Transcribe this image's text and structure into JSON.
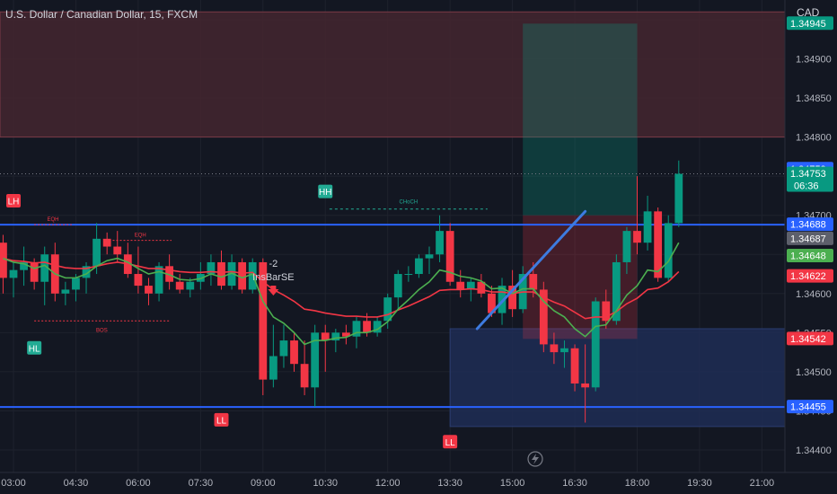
{
  "header": {
    "title": "U.S. Dollar / Canadian Dollar, 15, FXCM",
    "currency": "CAD"
  },
  "chart_data": {
    "type": "candlestick",
    "ylim": [
      1.3438,
      1.3502
    ],
    "y_ticks": [
      "1.34400",
      "1.34450",
      "1.34500",
      "1.34550",
      "1.34600",
      "1.34650",
      "1.34700",
      "1.34750",
      "1.34800",
      "1.34850",
      "1.34900",
      "1.34950"
    ],
    "x_ticks": [
      "03:00",
      "04:30",
      "06:00",
      "07:30",
      "09:00",
      "10:30",
      "12:00",
      "13:30",
      "15:00",
      "16:30",
      "18:00",
      "19:30",
      "21:00"
    ],
    "x_tick_hours": [
      3,
      4.5,
      6,
      7.5,
      9,
      10.5,
      12,
      13.5,
      15,
      16.5,
      18,
      19.5,
      21
    ],
    "bar_minutes": 15,
    "first_bar_hour": 2.75,
    "candles": [
      [
        1.34665,
        1.34675,
        1.346,
        1.3462
      ],
      [
        1.3462,
        1.3464,
        1.34595,
        1.3463
      ],
      [
        1.3463,
        1.3466,
        1.3461,
        1.3464
      ],
      [
        1.3464,
        1.34645,
        1.34605,
        1.34615
      ],
      [
        1.34615,
        1.3466,
        1.34585,
        1.3465
      ],
      [
        1.3465,
        1.34665,
        1.3459,
        1.346
      ],
      [
        1.346,
        1.34615,
        1.34585,
        1.34605
      ],
      [
        1.34605,
        1.34625,
        1.3459,
        1.3462
      ],
      [
        1.3462,
        1.3464,
        1.346,
        1.34635
      ],
      [
        1.34635,
        1.3469,
        1.34625,
        1.3467
      ],
      [
        1.3467,
        1.34678,
        1.3465,
        1.3466
      ],
      [
        1.3466,
        1.3468,
        1.3464,
        1.3465
      ],
      [
        1.3465,
        1.34665,
        1.3462,
        1.34625
      ],
      [
        1.34625,
        1.3466,
        1.346,
        1.3461
      ],
      [
        1.3461,
        1.3462,
        1.34585,
        1.346
      ],
      [
        1.346,
        1.3464,
        1.3459,
        1.34635
      ],
      [
        1.34635,
        1.3465,
        1.34605,
        1.34615
      ],
      [
        1.34615,
        1.34625,
        1.346,
        1.34605
      ],
      [
        1.34605,
        1.3462,
        1.34595,
        1.34615
      ],
      [
        1.34615,
        1.3464,
        1.34605,
        1.34625
      ],
      [
        1.34625,
        1.3465,
        1.3461,
        1.3464
      ],
      [
        1.3464,
        1.34655,
        1.34605,
        1.3461
      ],
      [
        1.3461,
        1.3465,
        1.34605,
        1.3464
      ],
      [
        1.3464,
        1.34645,
        1.346,
        1.34605
      ],
      [
        1.34605,
        1.34645,
        1.346,
        1.3464
      ],
      [
        1.3464,
        1.34645,
        1.3447,
        1.3449
      ],
      [
        1.3449,
        1.3456,
        1.3448,
        1.3452
      ],
      [
        1.3452,
        1.3456,
        1.34505,
        1.3454
      ],
      [
        1.3454,
        1.3455,
        1.345,
        1.3451
      ],
      [
        1.3451,
        1.3454,
        1.3447,
        1.3448
      ],
      [
        1.3448,
        1.3456,
        1.34455,
        1.3455
      ],
      [
        1.3455,
        1.3456,
        1.345,
        1.3454
      ],
      [
        1.3454,
        1.34555,
        1.34525,
        1.3455
      ],
      [
        1.3455,
        1.3456,
        1.34535,
        1.34545
      ],
      [
        1.34545,
        1.3457,
        1.3453,
        1.34565
      ],
      [
        1.34565,
        1.34575,
        1.34545,
        1.3455
      ],
      [
        1.3455,
        1.3457,
        1.34545,
        1.34565
      ],
      [
        1.34565,
        1.346,
        1.34555,
        1.34595
      ],
      [
        1.34595,
        1.3463,
        1.3458,
        1.34625
      ],
      [
        1.34625,
        1.34635,
        1.34615,
        1.34625
      ],
      [
        1.34625,
        1.3465,
        1.3462,
        1.34645
      ],
      [
        1.34645,
        1.3466,
        1.34625,
        1.3465
      ],
      [
        1.3465,
        1.347,
        1.3464,
        1.3468
      ],
      [
        1.3468,
        1.3469,
        1.3461,
        1.34615
      ],
      [
        1.34615,
        1.3463,
        1.34595,
        1.34605
      ],
      [
        1.34605,
        1.3462,
        1.3459,
        1.34615
      ],
      [
        1.34615,
        1.34625,
        1.34595,
        1.346
      ],
      [
        1.346,
        1.3461,
        1.3457,
        1.34575
      ],
      [
        1.34575,
        1.3462,
        1.3456,
        1.3461
      ],
      [
        1.3461,
        1.3463,
        1.3457,
        1.3458
      ],
      [
        1.3458,
        1.34635,
        1.34575,
        1.34625
      ],
      [
        1.34625,
        1.3464,
        1.34595,
        1.34605
      ],
      [
        1.34605,
        1.34615,
        1.34525,
        1.34535
      ],
      [
        1.34535,
        1.3455,
        1.3451,
        1.34525
      ],
      [
        1.34525,
        1.3454,
        1.34505,
        1.3453
      ],
      [
        1.3453,
        1.34535,
        1.34475,
        1.34485
      ],
      [
        1.34485,
        1.34535,
        1.34435,
        1.3448
      ],
      [
        1.3448,
        1.34595,
        1.34475,
        1.3459
      ],
      [
        1.3459,
        1.34605,
        1.34555,
        1.34565
      ],
      [
        1.34565,
        1.3465,
        1.3456,
        1.3464
      ],
      [
        1.3464,
        1.34685,
        1.34625,
        1.3468
      ],
      [
        1.3468,
        1.3475,
        1.3465,
        1.34665
      ],
      [
        1.34665,
        1.34725,
        1.34655,
        1.34705
      ],
      [
        1.34705,
        1.3471,
        1.34615,
        1.3462
      ],
      [
        1.3462,
        1.347,
        1.34615,
        1.3469
      ],
      [
        1.3469,
        1.3477,
        1.34685,
        1.34753
      ]
    ],
    "ema_fast": [
      1.34645,
      1.3464,
      1.34638,
      1.34632,
      1.34636,
      1.34625,
      1.3462,
      1.3462,
      1.34625,
      1.34635,
      1.34642,
      1.34645,
      1.3464,
      1.34632,
      1.34625,
      1.34628,
      1.34624,
      1.34618,
      1.34617,
      1.34619,
      1.34625,
      1.34621,
      1.34626,
      1.3462,
      1.34625,
      1.3459,
      1.3457,
      1.34562,
      1.3455,
      1.34535,
      1.3454,
      1.3454,
      1.34543,
      1.34544,
      1.3455,
      1.3455,
      1.34554,
      1.34564,
      1.3458,
      1.34592,
      1.34605,
      1.34615,
      1.3463,
      1.34627,
      1.34622,
      1.3462,
      1.34616,
      1.34606,
      1.34607,
      1.346,
      1.34606,
      1.34606,
      1.3459,
      1.34578,
      1.3457,
      1.34555,
      1.34545,
      1.34558,
      1.3456,
      1.34578,
      1.34598,
      1.3461,
      1.3463,
      1.34628,
      1.34641,
      1.34665
    ],
    "ema_slow": [
      1.34645,
      1.34642,
      1.34641,
      1.34639,
      1.3464,
      1.34636,
      1.34633,
      1.34632,
      1.34632,
      1.34635,
      1.34638,
      1.3464,
      1.34638,
      1.34635,
      1.34632,
      1.34632,
      1.3463,
      1.34628,
      1.34627,
      1.34627,
      1.34628,
      1.34627,
      1.34628,
      1.34626,
      1.34627,
      1.34615,
      1.34605,
      1.34598,
      1.3459,
      1.3458,
      1.34578,
      1.34575,
      1.34573,
      1.34571,
      1.34571,
      1.3457,
      1.3457,
      1.34573,
      1.34579,
      1.34584,
      1.3459,
      1.34596,
      1.34604,
      1.34605,
      1.34605,
      1.34606,
      1.34605,
      1.34602,
      1.34602,
      1.346,
      1.34602,
      1.34602,
      1.34595,
      1.34589,
      1.34584,
      1.34576,
      1.34568,
      1.3457,
      1.3457,
      1.34577,
      1.34587,
      1.34594,
      1.34605,
      1.34607,
      1.34615,
      1.34628
    ],
    "horizontal_lines": [
      {
        "price": 1.34688,
        "color": "#2962ff"
      },
      {
        "price": 1.34455,
        "color": "#2962ff"
      }
    ],
    "zones": [
      {
        "from": 1.3499,
        "to": 1.3501,
        "color": "#5c2b36",
        "border": "#7a3a46"
      },
      {
        "from": 1.348,
        "to": 1.3496,
        "color": "#44262f",
        "border": "#7a3a46"
      },
      {
        "from": 1.3443,
        "to": 1.34555,
        "start_hour": 13.5,
        "color": "#1e2d55",
        "border": "#2b3d70"
      }
    ],
    "position": {
      "start_hour": 15.25,
      "end_hour": 18.0,
      "target": 1.34945,
      "entry": 1.347,
      "stop": 1.34542
    },
    "trendline": {
      "from": [
        14.15,
        1.34555
      ],
      "to": [
        16.75,
        1.34705
      ],
      "color": "#3d7be0"
    },
    "structure": {
      "choch": {
        "label": "CHoCH",
        "from_hour": 10.6,
        "to_hour": 14.4,
        "price": 1.34708
      },
      "eqh": [
        {
          "label": "EQH",
          "from_hour": 3.5,
          "to_hour": 4.4,
          "price": 1.34688
        },
        {
          "label": "EQH",
          "from_hour": 5.3,
          "to_hour": 6.8,
          "price": 1.34668
        }
      ],
      "bos": {
        "label": "BOS",
        "from_hour": 3.5,
        "to_hour": 6.75,
        "price": 1.34565
      }
    },
    "labels": [
      {
        "text": "LH",
        "hour": 3.0,
        "price": 1.34718,
        "pos": "above",
        "color": "#f23645"
      },
      {
        "text": "HL",
        "hour": 3.5,
        "price": 1.3453,
        "pos": "below",
        "color": "#22ab94"
      },
      {
        "text": "LL",
        "hour": 8.0,
        "price": 1.34438,
        "pos": "below",
        "color": "#f23645"
      },
      {
        "text": "HH",
        "hour": 10.5,
        "price": 1.3473,
        "pos": "above",
        "color": "#22ab94"
      },
      {
        "text": "LL",
        "hour": 13.5,
        "price": 1.3441,
        "pos": "below",
        "color": "#f23645"
      }
    ],
    "signal": {
      "count": "-2",
      "name": "InsBarSE",
      "hour": 9.25
    },
    "price_labels": [
      {
        "text": "1.34945",
        "price": 1.34945,
        "bg": "#089981",
        "fg": "#ffffff"
      },
      {
        "text": "1.34759",
        "price": 1.34759,
        "bg": "#2962ff",
        "fg": "#ffffff"
      },
      {
        "text": "1.34753",
        "price": 1.34753,
        "bg": "#089981",
        "fg": "#ffffff",
        "sub": "06:36"
      },
      {
        "text": "1.34688",
        "price": 1.34688,
        "bg": "#2962ff",
        "fg": "#ffffff"
      },
      {
        "text": "1.34687",
        "price": 1.3467,
        "bg": "#5d606b",
        "fg": "#ffffff"
      },
      {
        "text": "1.34648",
        "price": 1.34648,
        "bg": "#4caf50",
        "fg": "#ffffff"
      },
      {
        "text": "1.34622",
        "price": 1.34622,
        "bg": "#f23645",
        "fg": "#ffffff"
      },
      {
        "text": "1.34542",
        "price": 1.34542,
        "bg": "#f23645",
        "fg": "#ffffff"
      },
      {
        "text": "1.34455",
        "price": 1.34455,
        "bg": "#2962ff",
        "fg": "#ffffff"
      }
    ],
    "colors": {
      "up": "#089981",
      "down": "#f23645",
      "ema_fast": "#4caf50",
      "ema_slow": "#f23645"
    }
  }
}
